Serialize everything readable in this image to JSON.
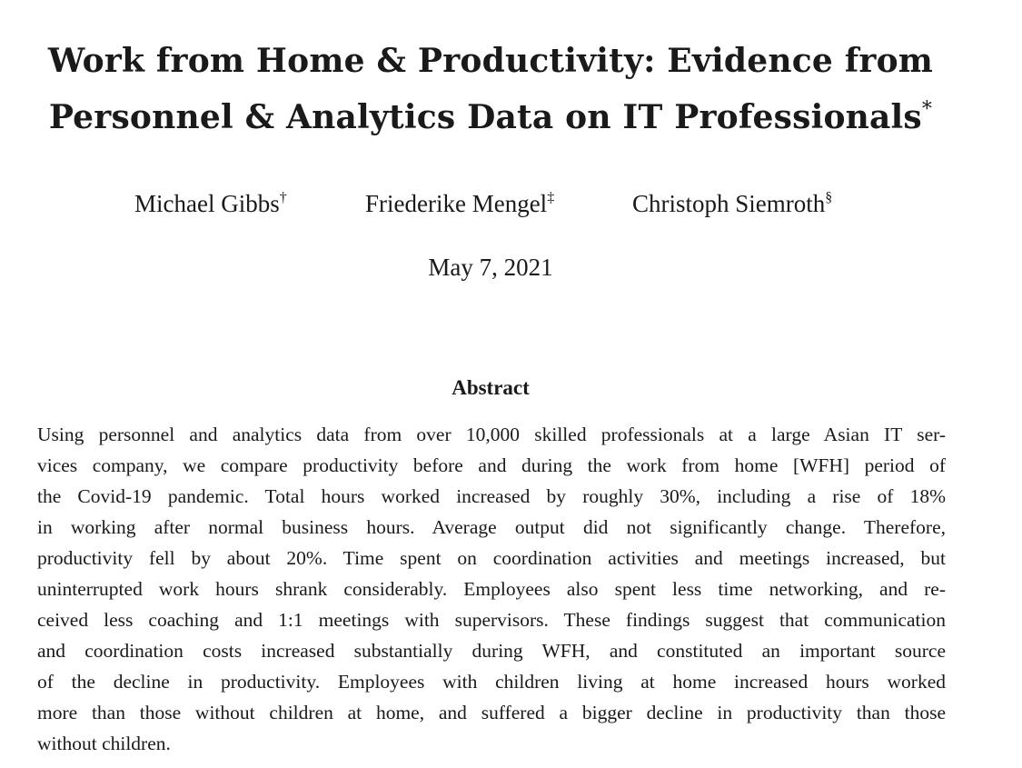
{
  "title": {
    "line1": "Work from Home & Productivity: Evidence from",
    "line2": "Personnel & Analytics Data on IT Professionals",
    "footnote_mark": "*"
  },
  "authors": [
    {
      "name": "Michael Gibbs",
      "mark": "†"
    },
    {
      "name": "Friederike Mengel",
      "mark": "‡"
    },
    {
      "name": "Christoph Siemroth",
      "mark": "§"
    }
  ],
  "date": "May 7, 2021",
  "abstract": {
    "heading": "Abstract",
    "lines": [
      "Using personnel and analytics data from over 10,000 skilled professionals at a large Asian IT ser-",
      "vices company, we compare productivity before and during the work from home [WFH] period of",
      "the Covid-19 pandemic.  Total hours worked increased by roughly 30%, including a rise of 18%",
      "in working after normal business hours.  Average output did not significantly change.  Therefore,",
      "productivity fell by about 20%.  Time spent on coordination activities and meetings increased, but",
      "uninterrupted work hours shrank considerably.  Employees also spent less time networking, and re-",
      "ceived less coaching and 1:1 meetings with supervisors.  These findings suggest that communication",
      "and coordination costs increased substantially during WFH, and constituted an important source",
      "of the decline in productivity.  Employees with children living at home increased hours worked",
      "more than those without children at home, and suffered a bigger decline in productivity than those",
      "without children."
    ]
  }
}
